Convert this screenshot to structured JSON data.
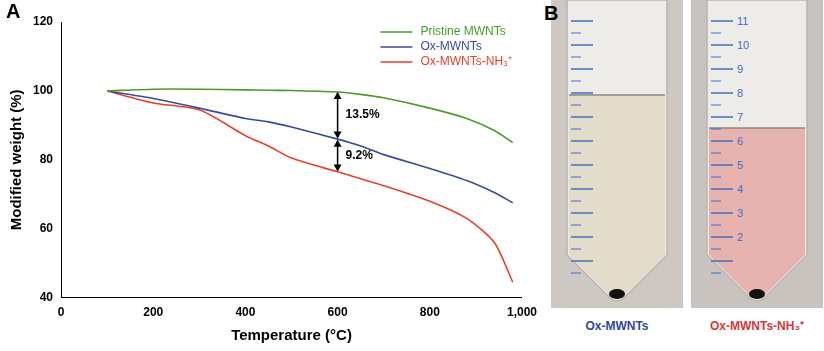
{
  "chart_data": {
    "type": "line",
    "panel": "A",
    "x_label": "Temperature (°C)",
    "y_label": "Modified weight (%)",
    "x": [
      100,
      200,
      300,
      400,
      450,
      500,
      600,
      650,
      700,
      800,
      880,
      940,
      980
    ],
    "series": [
      {
        "name": "Pristine MWNTs",
        "color": "#4c9a2a",
        "values": [
          100,
          100.5,
          100.5,
          100.3,
          100.2,
          100.1,
          99.7,
          99,
          98,
          95,
          92,
          88.5,
          85
        ]
      },
      {
        "name": "Ox-MWNTs",
        "color": "#3a4a9e",
        "values": [
          100,
          97.8,
          95,
          92,
          91,
          89.5,
          86,
          84,
          81.5,
          77.5,
          74,
          70.5,
          67.5
        ]
      },
      {
        "name": "Ox-MWNTs-NH₃⁺",
        "color": "#e8412c",
        "values": [
          100,
          96.5,
          94.5,
          87,
          84,
          80.5,
          76.5,
          74.5,
          72.5,
          68,
          63,
          56,
          44.5
        ]
      }
    ],
    "xlim": [
      0,
      1000
    ],
    "xticks": [
      0,
      200,
      400,
      600,
      800,
      1000
    ],
    "ylim": [
      40,
      120
    ],
    "yticks": [
      40,
      60,
      80,
      100,
      120
    ],
    "grid": false,
    "legend": "upper right",
    "annotations": [
      {
        "text": "13.5%",
        "x": 600,
        "from": 99.7,
        "to": 86.2
      },
      {
        "text": "9.2%",
        "x": 600,
        "from": 85.8,
        "to": 76.6
      }
    ]
  },
  "photos": {
    "panel": "B",
    "tubes": [
      {
        "label": "Ox-MWNTs",
        "color": "#2f4a9a"
      },
      {
        "label": "Ox-MWNTs-NH₃⁺",
        "color": "#d8383a",
        "scale_labels": [
          2,
          3,
          4,
          5,
          6,
          7,
          8,
          9,
          10,
          11
        ]
      }
    ]
  }
}
